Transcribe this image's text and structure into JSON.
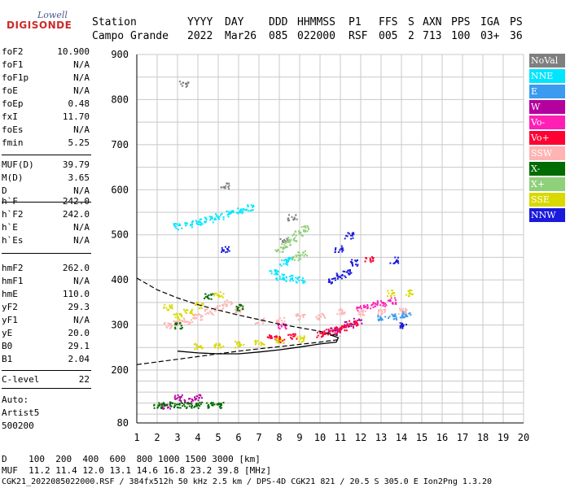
{
  "logo": {
    "top": "Lowell",
    "main": "DIGISONDE"
  },
  "header": {
    "labels": [
      "Station",
      "YYYY",
      "DAY",
      "DDD",
      "HHMMSS",
      "P1",
      "FFS",
      "S",
      "AXN",
      "PPS",
      "IGA",
      "PS"
    ],
    "values": [
      "Campo Grande",
      "2022",
      "Mar26",
      "085",
      "022000",
      "RSF",
      "005",
      "2",
      "713",
      "100",
      "03+",
      "36"
    ]
  },
  "params": {
    "group1": [
      {
        "k": "foF2",
        "v": "10.900"
      },
      {
        "k": "foF1",
        "v": "N/A"
      },
      {
        "k": "foF1p",
        "v": "N/A"
      },
      {
        "k": "foE",
        "v": "N/A"
      },
      {
        "k": "foEp",
        "v": "0.48"
      },
      {
        "k": "fxI",
        "v": "11.70"
      },
      {
        "k": "foEs",
        "v": "N/A"
      },
      {
        "k": "fmin",
        "v": "5.25"
      }
    ],
    "group2": [
      {
        "k": "MUF(D)",
        "v": "39.79"
      },
      {
        "k": "M(D)",
        "v": "3.65"
      },
      {
        "k": "D",
        "v": "N/A"
      }
    ],
    "group3": [
      {
        "k": "h`F",
        "v": "242.0"
      },
      {
        "k": "h`F2",
        "v": "242.0"
      },
      {
        "k": "h`E",
        "v": "N/A"
      },
      {
        "k": "h`Es",
        "v": "N/A"
      }
    ],
    "group4": [
      {
        "k": "hmF2",
        "v": "262.0"
      },
      {
        "k": "hmF1",
        "v": "N/A"
      },
      {
        "k": "hmE",
        "v": "110.0"
      },
      {
        "k": "yF2",
        "v": "29.3"
      },
      {
        "k": "yF1",
        "v": "N/A"
      },
      {
        "k": "yE",
        "v": "20.0"
      },
      {
        "k": "B0",
        "v": "29.1"
      },
      {
        "k": "B1",
        "v": "2.04"
      }
    ],
    "group5": [
      {
        "k": "C-level",
        "v": "22"
      }
    ]
  },
  "auto": [
    "Auto:",
    "Artist5",
    "500200"
  ],
  "legend": [
    {
      "label": "NoVal",
      "color": "#7f7f7f"
    },
    {
      "label": "NNE",
      "color": "#00e5ff"
    },
    {
      "label": "E",
      "color": "#3b9bf0"
    },
    {
      "label": "W",
      "color": "#b3009e"
    },
    {
      "label": "Vo-",
      "color": "#ff1fb4"
    },
    {
      "label": "Vo+",
      "color": "#ff0033"
    },
    {
      "label": "SSW",
      "color": "#ffb3b3"
    },
    {
      "label": "X-",
      "color": "#006b00"
    },
    {
      "label": "X+",
      "color": "#8fd07a"
    },
    {
      "label": "SSE",
      "color": "#d9d900"
    },
    {
      "label": "NNW",
      "color": "#1a1adb"
    }
  ],
  "footer": {
    "d_row": "D    100  200  400  600  800 1000 1500 3000 [km]",
    "muf_row": "MUF  11.2 11.4 12.0 13.1 14.6 16.8 23.2 39.8 [MHz]",
    "file_row": "CGK21_2022085022000.RSF / 384fx512h 50 kHz 2.5 km / DPS-4D CGK21 821 / 20.5 S 305.0 E Ion2Png 1.3.20"
  },
  "chart_data": {
    "type": "scatter",
    "title": "",
    "xlabel": "",
    "ylabel": "",
    "xlim": [
      1,
      20
    ],
    "ylim": [
      80,
      900
    ],
    "x_ticks": [
      1,
      2,
      3,
      4,
      5,
      6,
      7,
      8,
      9,
      10,
      11,
      12,
      13,
      14,
      15,
      16,
      17,
      18,
      19,
      20
    ],
    "y_ticks": [
      80,
      200,
      300,
      400,
      500,
      600,
      700,
      800,
      900
    ],
    "grid": true,
    "legend_position": "right",
    "profile_dashed": [
      [
        1.0,
        212
      ],
      [
        2.0,
        218
      ],
      [
        3.0,
        224
      ],
      [
        4.0,
        230
      ],
      [
        5.0,
        236
      ],
      [
        6.0,
        242
      ],
      [
        7.0,
        247
      ],
      [
        8.0,
        252
      ],
      [
        9.0,
        257
      ],
      [
        10.0,
        262
      ],
      [
        11.0,
        268
      ]
    ],
    "profile_dashed_upper": [
      [
        1.0,
        404
      ],
      [
        2.0,
        378
      ],
      [
        3.0,
        360
      ],
      [
        4.0,
        345
      ],
      [
        5.0,
        333
      ],
      [
        6.0,
        322
      ],
      [
        7.0,
        312
      ],
      [
        8.0,
        302
      ],
      [
        9.0,
        294
      ],
      [
        10.0,
        286
      ],
      [
        11.0,
        275
      ]
    ],
    "trace_solid": [
      [
        3.0,
        242
      ],
      [
        4.0,
        238
      ],
      [
        5.0,
        236
      ],
      [
        6.0,
        236
      ],
      [
        7.0,
        240
      ],
      [
        8.0,
        245
      ],
      [
        9.0,
        251
      ],
      [
        10.0,
        258
      ],
      [
        10.8,
        262
      ],
      [
        10.9,
        272
      ],
      [
        10.5,
        278
      ]
    ],
    "series": [
      {
        "name": "NoVal",
        "points": [
          [
            3.3,
            836
          ],
          [
            5.3,
            610
          ],
          [
            8.2,
            488
          ],
          [
            8.6,
            540
          ]
        ]
      },
      {
        "name": "NNE",
        "points": [
          [
            3.0,
            520
          ],
          [
            3.5,
            525
          ],
          [
            4.0,
            530
          ],
          [
            4.5,
            536
          ],
          [
            5.0,
            542
          ],
          [
            5.5,
            548
          ],
          [
            6.0,
            555
          ],
          [
            6.5,
            562
          ],
          [
            7.7,
            420
          ],
          [
            8.0,
            408
          ],
          [
            8.5,
            405
          ],
          [
            9.0,
            402
          ],
          [
            8.2,
            440
          ],
          [
            8.4,
            446
          ]
        ]
      },
      {
        "name": "E",
        "points": [
          [
            13.0,
            318
          ],
          [
            13.5,
            320
          ],
          [
            14.0,
            325
          ],
          [
            14.2,
            322
          ]
        ]
      },
      {
        "name": "W",
        "points": [
          [
            2.4,
            120
          ],
          [
            3.0,
            138
          ],
          [
            3.5,
            132
          ],
          [
            4.0,
            140
          ],
          [
            10.6,
            288
          ],
          [
            11.0,
            292
          ],
          [
            11.4,
            302
          ],
          [
            11.8,
            310
          ]
        ]
      },
      {
        "name": "Vo-",
        "points": [
          [
            12.0,
            340
          ],
          [
            12.5,
            345
          ],
          [
            13.0,
            350
          ],
          [
            13.5,
            355
          ],
          [
            8.1,
            300
          ]
        ]
      },
      {
        "name": "Vo+",
        "points": [
          [
            10.0,
            280
          ],
          [
            10.4,
            285
          ],
          [
            10.8,
            290
          ],
          [
            11.2,
            296
          ],
          [
            11.6,
            305
          ],
          [
            7.6,
            275
          ],
          [
            8.0,
            270
          ],
          [
            8.6,
            275
          ],
          [
            12.4,
            448
          ]
        ]
      },
      {
        "name": "SSW",
        "points": [
          [
            2.5,
            300
          ],
          [
            3.0,
            305
          ],
          [
            3.5,
            310
          ],
          [
            4.0,
            320
          ],
          [
            4.5,
            330
          ],
          [
            5.0,
            340
          ],
          [
            5.5,
            350
          ],
          [
            6.0,
            335
          ],
          [
            7.0,
            310
          ],
          [
            8.0,
            312
          ],
          [
            9.0,
            320
          ],
          [
            10.0,
            320
          ],
          [
            11.0,
            330
          ],
          [
            12.0,
            328
          ],
          [
            13.0,
            330
          ],
          [
            14.0,
            332
          ]
        ]
      },
      {
        "name": "X-",
        "points": [
          [
            2.0,
            122
          ],
          [
            2.5,
            122
          ],
          [
            3.0,
            122
          ],
          [
            3.5,
            122
          ],
          [
            4.0,
            122
          ],
          [
            4.5,
            122
          ],
          [
            5.0,
            122
          ],
          [
            3.0,
            300
          ],
          [
            4.5,
            365
          ],
          [
            6.0,
            340
          ]
        ]
      },
      {
        "name": "X+",
        "points": [
          [
            8.0,
            470
          ],
          [
            8.3,
            480
          ],
          [
            8.6,
            494
          ],
          [
            8.9,
            505
          ],
          [
            9.2,
            515
          ],
          [
            8.8,
            450
          ],
          [
            9.1,
            460
          ]
        ]
      },
      {
        "name": "SSE",
        "points": [
          [
            4.0,
            255
          ],
          [
            5.0,
            256
          ],
          [
            6.0,
            258
          ],
          [
            7.0,
            262
          ],
          [
            8.0,
            266
          ],
          [
            9.0,
            270
          ],
          [
            2.5,
            340
          ],
          [
            3.0,
            320
          ],
          [
            3.5,
            330
          ],
          [
            4.0,
            345
          ],
          [
            5.0,
            370
          ],
          [
            13.5,
            372
          ],
          [
            14.4,
            372
          ]
        ]
      },
      {
        "name": "NNW",
        "points": [
          [
            10.6,
            400
          ],
          [
            11.0,
            410
          ],
          [
            11.3,
            420
          ],
          [
            11.6,
            440
          ],
          [
            11.4,
            500
          ],
          [
            10.9,
            470
          ],
          [
            13.6,
            445
          ],
          [
            5.3,
            470
          ],
          [
            14.0,
            300
          ]
        ]
      }
    ]
  }
}
